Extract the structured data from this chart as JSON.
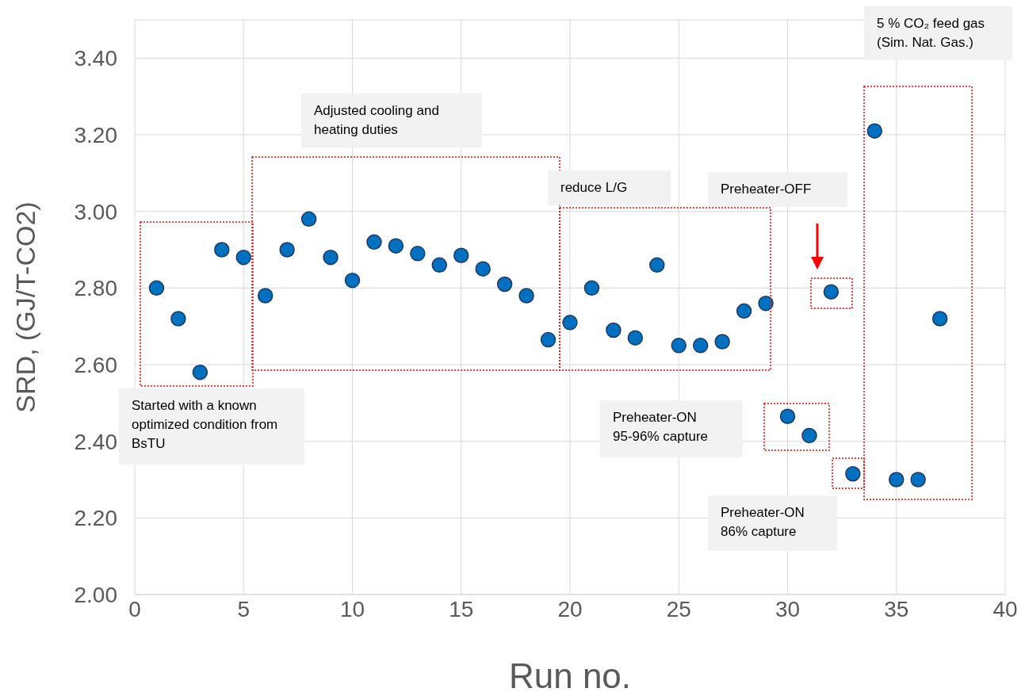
{
  "chart_data": {
    "type": "scatter",
    "xlabel": "Run no.",
    "ylabel": "SRD, (GJ/T-CO2)",
    "x": [
      1,
      2,
      3,
      4,
      5,
      6,
      7,
      8,
      9,
      10,
      11,
      12,
      13,
      14,
      15,
      16,
      17,
      18,
      19,
      20,
      21,
      22,
      23,
      24,
      25,
      26,
      27,
      28,
      29,
      30,
      31,
      32,
      33,
      34,
      35,
      36,
      37
    ],
    "values": [
      2.8,
      2.72,
      2.58,
      2.9,
      2.88,
      2.78,
      2.9,
      2.98,
      2.88,
      2.82,
      2.92,
      2.91,
      2.89,
      2.86,
      2.885,
      2.85,
      2.81,
      2.78,
      2.665,
      2.71,
      2.8,
      2.69,
      2.67,
      2.86,
      2.65,
      2.65,
      2.66,
      2.74,
      2.76,
      2.465,
      2.415,
      2.79,
      2.315,
      3.21,
      2.3,
      2.3,
      2.72
    ],
    "color": "#0070c0",
    "marker": "circle",
    "grid": true,
    "legend": false,
    "xlim": [
      0,
      40
    ],
    "xticks": [
      0,
      5,
      10,
      15,
      20,
      25,
      30,
      35,
      40
    ],
    "ylim": [
      2,
      3.5
    ],
    "yticks": [
      {
        "value": 2,
        "label": "2.00"
      },
      {
        "value": 2.2,
        "label": "2.20"
      },
      {
        "value": 2.4,
        "label": "2.40"
      },
      {
        "value": 2.6,
        "label": "2.60"
      },
      {
        "value": 2.8,
        "label": "2.80"
      },
      {
        "value": 3,
        "label": "3.00"
      },
      {
        "value": 3.2,
        "label": "3.20"
      },
      {
        "value": 3.4,
        "label": "3.40"
      }
    ],
    "annotations": [
      "Started with a known optimized condition from BsTU",
      "Adjusted cooling and heating duties",
      "reduce L/G",
      "Preheater-OFF",
      "Preheater-ON 95-96% capture",
      "Preheater-ON 86% capture",
      "5 % CO₂ feed gas (Sim. Nat. Gas.)"
    ]
  }
}
